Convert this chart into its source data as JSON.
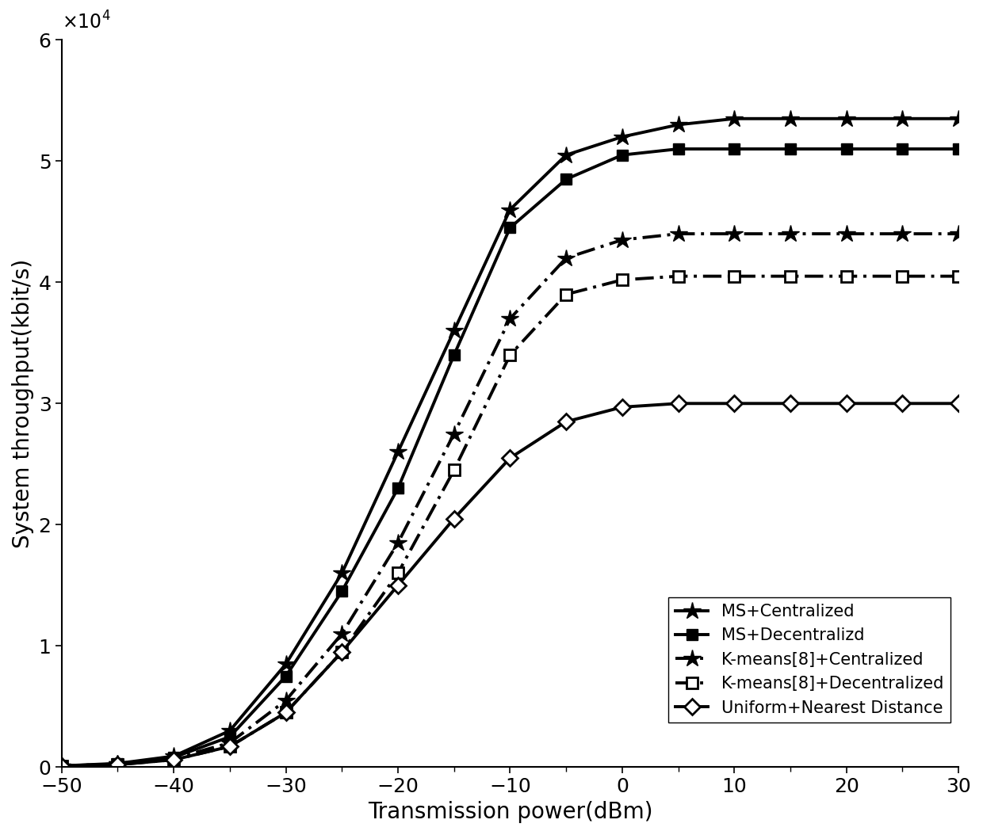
{
  "x": [
    -50,
    -45,
    -40,
    -35,
    -30,
    -25,
    -20,
    -15,
    -10,
    -5,
    0,
    5,
    10,
    15,
    20,
    25,
    30
  ],
  "ms_centralized": [
    100,
    300,
    900,
    3000,
    8500,
    16000,
    26000,
    36000,
    46000,
    50500,
    52000,
    53000,
    53500,
    53500,
    53500,
    53500,
    53500
  ],
  "ms_decentralized": [
    100,
    250,
    800,
    2500,
    7500,
    14500,
    23000,
    34000,
    44500,
    48500,
    50500,
    51000,
    51000,
    51000,
    51000,
    51000,
    51000
  ],
  "kmeans_centralized": [
    100,
    250,
    700,
    2000,
    5500,
    11000,
    18500,
    27500,
    37000,
    42000,
    43500,
    44000,
    44000,
    44000,
    44000,
    44000,
    44000
  ],
  "kmeans_decentralized": [
    100,
    200,
    600,
    1700,
    4500,
    9500,
    16000,
    24500,
    34000,
    39000,
    40200,
    40500,
    40500,
    40500,
    40500,
    40500,
    40500
  ],
  "uniform_nearest": [
    100,
    200,
    600,
    1700,
    4500,
    9500,
    15000,
    20500,
    25500,
    28500,
    29700,
    30000,
    30000,
    30000,
    30000,
    30000,
    30000
  ],
  "xlabel": "Transmission power(dBm)",
  "ylabel": "System throughput(kbit/s)",
  "xlim": [
    -50,
    30
  ],
  "ylim": [
    0,
    60000
  ],
  "yticks": [
    0,
    10000,
    20000,
    30000,
    40000,
    50000,
    60000
  ],
  "xticks_major": [
    -50,
    -40,
    -30,
    -20,
    -10,
    0,
    10,
    20,
    30
  ],
  "xticks_minor": [
    -45,
    -35,
    -25,
    -15,
    -5,
    5,
    15,
    25
  ],
  "legend_labels": [
    "MS+Centralized",
    "MS+Decentralizd",
    "K-means[8]+Centralized",
    "K-means[8]+Decentralized",
    "Uniform+Nearest Distance"
  ],
  "line_color": "#000000",
  "background_color": "#ffffff",
  "xlabel_fontsize": 20,
  "ylabel_fontsize": 20,
  "tick_fontsize": 18,
  "legend_fontsize": 15
}
